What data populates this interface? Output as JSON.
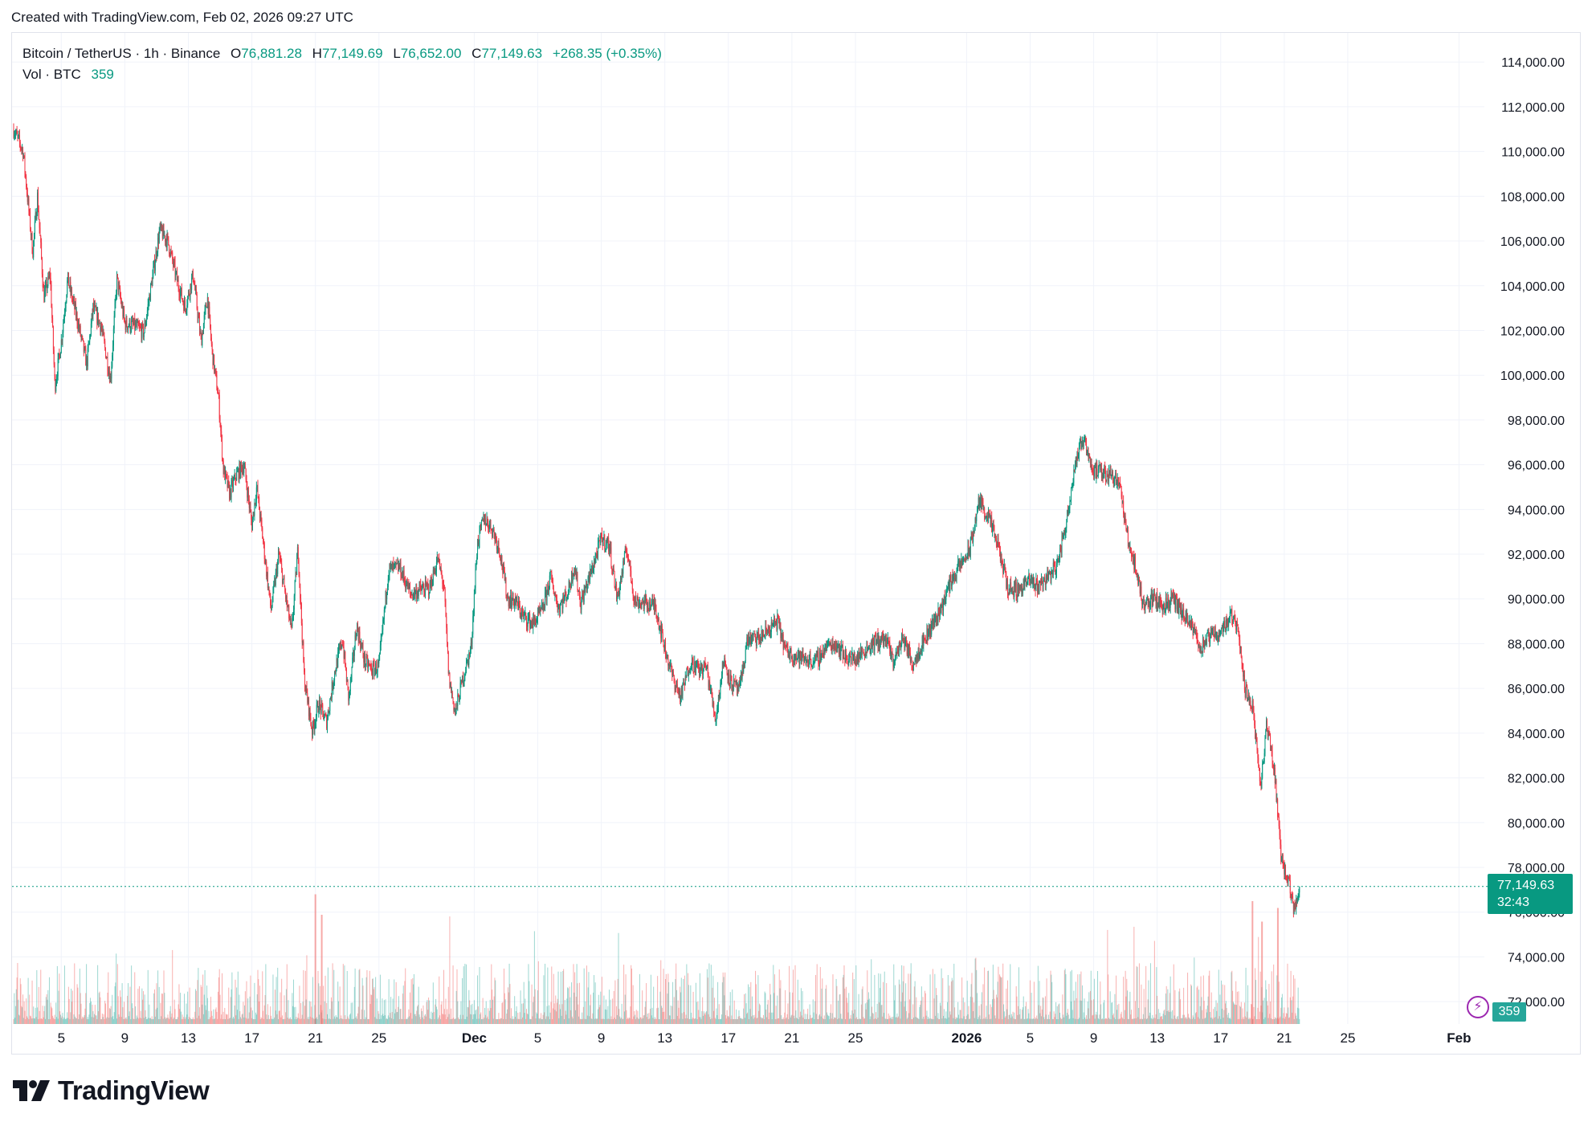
{
  "header": {
    "created_text": "Created with TradingView.com, Feb 02, 2026 09:27 UTC"
  },
  "legend": {
    "symbol": "Bitcoin / TetherUS · 1h · Binance",
    "o_label": "O",
    "o_value": "76,881.28",
    "h_label": "H",
    "h_value": "77,149.69",
    "l_label": "L",
    "l_value": "76,652.00",
    "c_label": "C",
    "c_value": "77,149.63",
    "change": "+268.35 (+0.35%)",
    "vol_label": "Vol · BTC",
    "vol_value": "359"
  },
  "price_tag": {
    "price": "77,149.63",
    "countdown": "32:43"
  },
  "volume_tag": {
    "value": "359"
  },
  "brand": {
    "name": "TradingView"
  },
  "colors": {
    "up": "#089981",
    "down": "#f23645",
    "up_volume": "#26a69a",
    "down_volume": "#ef5350",
    "grid": "#f0f3fa"
  },
  "chart_data": {
    "type": "candlestick",
    "symbol": "Bitcoin / TetherUS",
    "interval": "1h",
    "exchange": "Binance",
    "y_axis_ticks": [
      "114,000.00",
      "112,000.00",
      "110,000.00",
      "108,000.00",
      "106,000.00",
      "104,000.00",
      "102,000.00",
      "100,000.00",
      "98,000.00",
      "96,000.00",
      "94,000.00",
      "92,000.00",
      "90,000.00",
      "88,000.00",
      "86,000.00",
      "84,000.00",
      "82,000.00",
      "80,000.00",
      "78,000.00",
      "76,000.00",
      "74,000.00",
      "72,000.00"
    ],
    "ylim": [
      71000,
      115300
    ],
    "x_axis_ticks": [
      {
        "label": "5",
        "day": 5
      },
      {
        "label": "9",
        "day": 9
      },
      {
        "label": "13",
        "day": 13
      },
      {
        "label": "17",
        "day": 17
      },
      {
        "label": "21",
        "day": 21
      },
      {
        "label": "25",
        "day": 25
      },
      {
        "label": "Dec",
        "day": 31
      },
      {
        "label": "5",
        "day": 35
      },
      {
        "label": "9",
        "day": 39
      },
      {
        "label": "13",
        "day": 43
      },
      {
        "label": "17",
        "day": 47
      },
      {
        "label": "21",
        "day": 51
      },
      {
        "label": "25",
        "day": 55
      },
      {
        "label": "2026",
        "day": 62
      },
      {
        "label": "5",
        "day": 66
      },
      {
        "label": "9",
        "day": 70
      },
      {
        "label": "13",
        "day": 74
      },
      {
        "label": "17",
        "day": 78
      },
      {
        "label": "21",
        "day": 82
      },
      {
        "label": "25",
        "day": 86
      },
      {
        "label": "Feb",
        "day": 93
      }
    ],
    "xlim": [
      1.9,
      94.6
    ],
    "close_path": [
      [
        2.0,
        111000
      ],
      [
        2.6,
        110000
      ],
      [
        3.2,
        105500
      ],
      [
        3.5,
        108000
      ],
      [
        3.9,
        103500
      ],
      [
        4.3,
        104500
      ],
      [
        4.6,
        99500
      ],
      [
        5.0,
        101500
      ],
      [
        5.4,
        104300
      ],
      [
        6.0,
        102500
      ],
      [
        6.6,
        100500
      ],
      [
        7.0,
        103000
      ],
      [
        7.5,
        102200
      ],
      [
        8.1,
        99800
      ],
      [
        8.5,
        104300
      ],
      [
        9.0,
        102300
      ],
      [
        9.6,
        102200
      ],
      [
        10.2,
        101900
      ],
      [
        10.7,
        104200
      ],
      [
        11.2,
        106500
      ],
      [
        11.7,
        106000
      ],
      [
        12.3,
        104200
      ],
      [
        12.8,
        103000
      ],
      [
        13.3,
        104500
      ],
      [
        13.8,
        101500
      ],
      [
        14.2,
        103500
      ],
      [
        14.5,
        101000
      ],
      [
        14.9,
        99000
      ],
      [
        15.2,
        95800
      ],
      [
        15.6,
        94700
      ],
      [
        16.0,
        95500
      ],
      [
        16.5,
        96000
      ],
      [
        17.0,
        93300
      ],
      [
        17.3,
        95000
      ],
      [
        17.8,
        92000
      ],
      [
        18.2,
        89500
      ],
      [
        18.7,
        92000
      ],
      [
        19.1,
        90200
      ],
      [
        19.5,
        88500
      ],
      [
        19.9,
        92300
      ],
      [
        20.3,
        86400
      ],
      [
        20.8,
        84100
      ],
      [
        21.2,
        85300
      ],
      [
        21.7,
        84500
      ],
      [
        22.2,
        86700
      ],
      [
        22.7,
        88200
      ],
      [
        23.1,
        85500
      ],
      [
        23.6,
        88800
      ],
      [
        24.1,
        87200
      ],
      [
        24.6,
        86800
      ],
      [
        25.0,
        87000
      ],
      [
        25.6,
        91300
      ],
      [
        26.3,
        91400
      ],
      [
        27.0,
        90200
      ],
      [
        27.6,
        90400
      ],
      [
        28.2,
        90500
      ],
      [
        28.7,
        91800
      ],
      [
        29.1,
        90500
      ],
      [
        29.4,
        86500
      ],
      [
        29.8,
        84900
      ],
      [
        30.3,
        86500
      ],
      [
        30.8,
        87800
      ],
      [
        31.2,
        92500
      ],
      [
        31.6,
        93600
      ],
      [
        32.1,
        93200
      ],
      [
        32.6,
        92200
      ],
      [
        33.1,
        90000
      ],
      [
        33.6,
        89900
      ],
      [
        34.1,
        89200
      ],
      [
        34.7,
        88900
      ],
      [
        35.3,
        89500
      ],
      [
        35.8,
        91000
      ],
      [
        36.3,
        89600
      ],
      [
        36.9,
        90300
      ],
      [
        37.3,
        91500
      ],
      [
        37.7,
        89800
      ],
      [
        38.4,
        91300
      ],
      [
        39.0,
        92700
      ],
      [
        39.5,
        92400
      ],
      [
        40.0,
        90000
      ],
      [
        40.6,
        92300
      ],
      [
        41.1,
        89900
      ],
      [
        41.8,
        89800
      ],
      [
        42.4,
        89700
      ],
      [
        43.0,
        87800
      ],
      [
        43.5,
        86500
      ],
      [
        44.0,
        85600
      ],
      [
        44.6,
        87200
      ],
      [
        45.2,
        86800
      ],
      [
        45.6,
        87000
      ],
      [
        46.2,
        84600
      ],
      [
        46.7,
        87300
      ],
      [
        47.2,
        86200
      ],
      [
        47.7,
        85900
      ],
      [
        48.2,
        88200
      ],
      [
        48.9,
        88200
      ],
      [
        49.5,
        88600
      ],
      [
        50.1,
        89000
      ],
      [
        50.6,
        87700
      ],
      [
        51.3,
        87400
      ],
      [
        51.9,
        87300
      ],
      [
        52.5,
        87200
      ],
      [
        53.2,
        87900
      ],
      [
        53.8,
        88000
      ],
      [
        54.4,
        87400
      ],
      [
        55.0,
        87300
      ],
      [
        55.7,
        87800
      ],
      [
        56.3,
        88100
      ],
      [
        56.9,
        88200
      ],
      [
        57.4,
        87200
      ],
      [
        58.0,
        88300
      ],
      [
        58.6,
        87100
      ],
      [
        59.2,
        88000
      ],
      [
        59.8,
        88800
      ],
      [
        60.4,
        89600
      ],
      [
        61.0,
        90800
      ],
      [
        61.6,
        91500
      ],
      [
        62.2,
        92200
      ],
      [
        62.8,
        94400
      ],
      [
        63.4,
        93600
      ],
      [
        64.0,
        92300
      ],
      [
        64.6,
        90500
      ],
      [
        65.2,
        90400
      ],
      [
        65.9,
        90800
      ],
      [
        66.5,
        90600
      ],
      [
        67.1,
        91000
      ],
      [
        67.7,
        91500
      ],
      [
        68.3,
        93500
      ],
      [
        68.8,
        96000
      ],
      [
        69.4,
        97300
      ],
      [
        69.9,
        95800
      ],
      [
        70.5,
        95600
      ],
      [
        71.1,
        95600
      ],
      [
        71.6,
        95300
      ],
      [
        72.1,
        92800
      ],
      [
        72.6,
        91500
      ],
      [
        73.1,
        89800
      ],
      [
        73.8,
        90000
      ],
      [
        74.4,
        89700
      ],
      [
        75.0,
        90000
      ],
      [
        75.6,
        89300
      ],
      [
        76.2,
        88700
      ],
      [
        76.8,
        87800
      ],
      [
        77.4,
        88400
      ],
      [
        78.0,
        88500
      ],
      [
        78.6,
        89300
      ],
      [
        79.1,
        88800
      ],
      [
        79.5,
        86000
      ],
      [
        80.0,
        85300
      ],
      [
        80.5,
        81500
      ],
      [
        80.9,
        84400
      ],
      [
        81.4,
        82200
      ],
      [
        81.8,
        78500
      ],
      [
        82.2,
        77500
      ],
      [
        82.6,
        76200
      ],
      [
        83.0,
        77150
      ]
    ],
    "volume_spikes": [
      {
        "day": 21.0,
        "height": 0.95
      },
      {
        "day": 21.4,
        "height": 0.8
      },
      {
        "day": 80.0,
        "height": 0.9
      },
      {
        "day": 80.6,
        "height": 0.75
      },
      {
        "day": 81.6,
        "height": 0.85
      }
    ],
    "last_price": 77149.63,
    "last_volume": 359
  }
}
